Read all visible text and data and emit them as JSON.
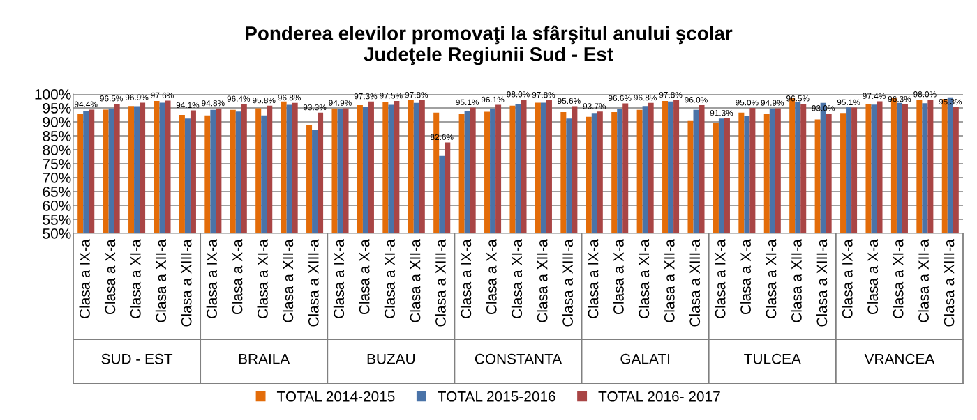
{
  "chart_data": {
    "type": "bar",
    "title": "Ponderea elevilor promovaţi la sfârşitul anului şcolar\nJudeţele Regiunii Sud - Est",
    "categories": [
      "Clasa a IX-a",
      "Clasa a X-a",
      "Clasa a XI-a",
      "Clasa a XII-a",
      "Clasa a XIII-a",
      "Clasa a IX-a",
      "Clasa a X-a",
      "Clasa a XI-a",
      "Clasa a XII-a",
      "Clasa a XIII-a",
      "Clasa a IX-a",
      "Clasa a X-a",
      "Clasa a XI-a",
      "Clasa a XII-a",
      "Clasa a XIII-a",
      "Clasa a IX-a",
      "Clasa a X-a",
      "Clasa a XI-a",
      "Clasa a XII-a",
      "Clasa a XIII-a",
      "Clasa a IX-a",
      "Clasa a X-a",
      "Clasa a XI-a",
      "Clasa a XII-a",
      "Clasa a XIII-a",
      "Clasa a IX-a",
      "Clasa a X-a",
      "Clasa a XI-a",
      "Clasa a XII-a",
      "Clasa a XIII-a",
      "Clasa a IX-a",
      "Clasa a X-a",
      "Clasa a XI-a",
      "Clasa a XII-a",
      "Clasa a XIII-a"
    ],
    "series": [
      {
        "name": "TOTAL 2014-2015",
        "color": "#e36c09",
        "values": [
          92.8,
          94.4,
          95.7,
          97.5,
          92.5,
          92.3,
          94.3,
          94.9,
          97.3,
          88.8,
          94.8,
          96.0,
          97.0,
          97.8,
          93.3,
          92.9,
          93.6,
          95.8,
          96.9,
          93.5,
          91.8,
          93.5,
          94.3,
          97.5,
          90.3,
          89.7,
          93.3,
          92.8,
          98.5,
          90.9,
          93.2,
          96.3,
          98.5,
          97.8,
          98.2
        ]
      },
      {
        "name": "TOTAL 2015-2016",
        "color": "#4a73a8",
        "values": [
          93.8,
          94.8,
          95.6,
          96.9,
          91.2,
          94.3,
          93.7,
          92.3,
          96.1,
          87.1,
          94.6,
          95.5,
          96.1,
          96.8,
          77.8,
          93.8,
          94.8,
          96.3,
          96.9,
          91.2,
          93.2,
          94.7,
          95.7,
          97.3,
          94.3,
          91.2,
          92.0,
          94.8,
          97.0,
          96.8,
          95.2,
          96.2,
          96.8,
          96.7,
          98.8
        ]
      },
      {
        "name": "TOTAL 2016- 2017",
        "color": "#a94545",
        "values": [
          94.4,
          96.5,
          96.9,
          97.6,
          94.1,
          94.8,
          96.4,
          95.8,
          96.8,
          93.3,
          94.9,
          97.3,
          97.5,
          97.8,
          82.6,
          95.1,
          96.1,
          98.0,
          97.8,
          95.6,
          93.7,
          96.6,
          96.8,
          97.8,
          96.0,
          91.3,
          95.0,
          94.9,
          96.5,
          93.0,
          95.1,
          97.4,
          96.3,
          98.0,
          95.3
        ],
        "value_labels": [
          "94.4%",
          "96.5%",
          "96.9%",
          "97.6%",
          "94.1%",
          "94.8%",
          "96.4%",
          "95.8%",
          "96.8%",
          "93.3%",
          "94.9%",
          "97.3%",
          "97.5%",
          "97.8%",
          "82.6%",
          "95.1%",
          "96.1%",
          "98.0%",
          "97.8%",
          "95.6%",
          "93.7%",
          "96.6%",
          "96.8%",
          "97.8%",
          "96.0%",
          "91.3%",
          "95.0%",
          "94.9%",
          "96.5%",
          "93.0%",
          "95.1%",
          "97.4%",
          "96.3%",
          "98.0%",
          "95.3%"
        ]
      }
    ],
    "annotations": [
      "SUD - EST",
      "BRAILA",
      "BUZAU",
      "CONSTANTA",
      "GALATI",
      "TULCEA",
      "VRANCEA"
    ],
    "ylim": [
      50,
      100
    ],
    "yticks": [
      {
        "value": 50,
        "label": "50%"
      },
      {
        "value": 55,
        "label": "55%"
      },
      {
        "value": 60,
        "label": "60%"
      },
      {
        "value": 65,
        "label": "65%"
      },
      {
        "value": 70,
        "label": "70%"
      },
      {
        "value": 75,
        "label": "75%"
      },
      {
        "value": 80,
        "label": "80%"
      },
      {
        "value": 85,
        "label": "85%"
      },
      {
        "value": 90,
        "label": "90%"
      },
      {
        "value": 95,
        "label": "95%"
      },
      {
        "value": 100,
        "label": "100%"
      }
    ],
    "grid": "y",
    "legend": "bottom"
  }
}
